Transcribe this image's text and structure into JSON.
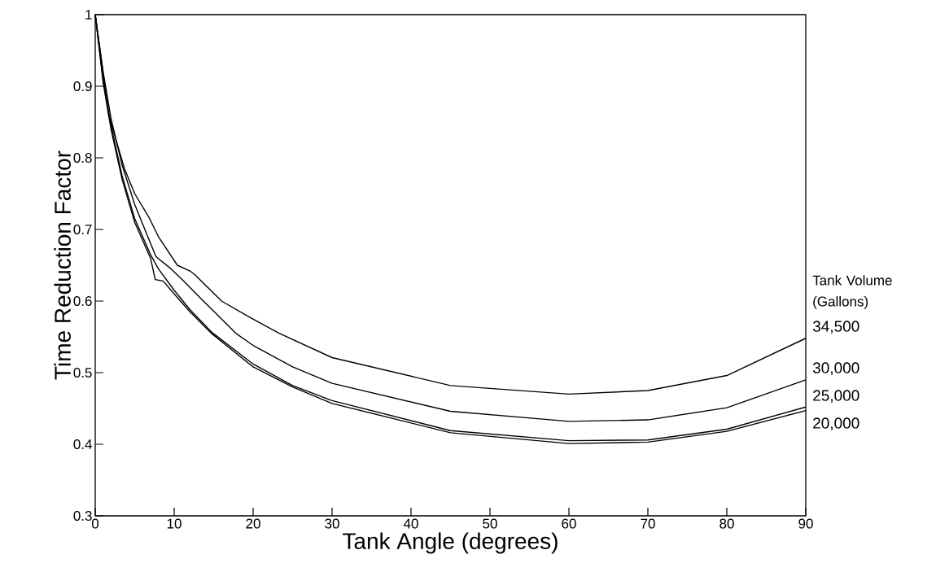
{
  "chart_data": {
    "type": "line",
    "xlabel": "Tank Angle (degrees)",
    "ylabel": "Time Reduction Factor",
    "legend_title": "Tank Volume (Gallons)",
    "xlim": [
      0,
      90
    ],
    "ylim": [
      0.3,
      1
    ],
    "xticks": [
      0,
      10,
      20,
      30,
      40,
      50,
      60,
      70,
      80,
      90
    ],
    "yticks": [
      0.3,
      0.4,
      0.5,
      0.6,
      0.7,
      0.8,
      0.9,
      1
    ],
    "grid": false,
    "marker": "none",
    "line_style": "solid",
    "series": [
      {
        "name": "34,500",
        "color": "#000000",
        "x": [
          0,
          1.7,
          3.7,
          5,
          6.8,
          8,
          10.4,
          12,
          12.7,
          13.7,
          16,
          19.6,
          23.3,
          30,
          45,
          60,
          70,
          80,
          90
        ],
        "values": [
          1,
          0.86,
          0.785,
          0.75,
          0.717,
          0.69,
          0.65,
          0.642,
          0.636,
          0.625,
          0.6,
          0.577,
          0.555,
          0.521,
          0.482,
          0.47,
          0.475,
          0.496,
          0.548
        ]
      },
      {
        "name": "30,000",
        "color": "#000000",
        "x": [
          0,
          1,
          2,
          3.4,
          5,
          6.5,
          7.7,
          9.6,
          11,
          13.7,
          17.8,
          20,
          25,
          30,
          45,
          60,
          70,
          80,
          90
        ],
        "values": [
          1,
          0.92,
          0.855,
          0.79,
          0.735,
          0.694,
          0.662,
          0.645,
          0.63,
          0.6,
          0.555,
          0.538,
          0.508,
          0.485,
          0.446,
          0.432,
          0.434,
          0.451,
          0.49
        ]
      },
      {
        "name": "25,000",
        "color": "#000000",
        "x": [
          0,
          1,
          2,
          3.4,
          5,
          7,
          8,
          10,
          12,
          14.7,
          20,
          25,
          30,
          45,
          60,
          70,
          80,
          90
        ],
        "values": [
          1,
          0.91,
          0.845,
          0.775,
          0.715,
          0.665,
          0.645,
          0.615,
          0.588,
          0.557,
          0.512,
          0.482,
          0.461,
          0.419,
          0.405,
          0.406,
          0.421,
          0.452
        ]
      },
      {
        "name": "20,000",
        "color": "#000000",
        "x": [
          0,
          1,
          2,
          3.4,
          5,
          7,
          7.6,
          8.6,
          10,
          12,
          14.7,
          20,
          25,
          30,
          45,
          60,
          70,
          80,
          90
        ],
        "values": [
          1,
          0.905,
          0.84,
          0.77,
          0.71,
          0.66,
          0.63,
          0.628,
          0.61,
          0.585,
          0.555,
          0.508,
          0.48,
          0.457,
          0.416,
          0.401,
          0.403,
          0.418,
          0.447
        ]
      }
    ]
  }
}
